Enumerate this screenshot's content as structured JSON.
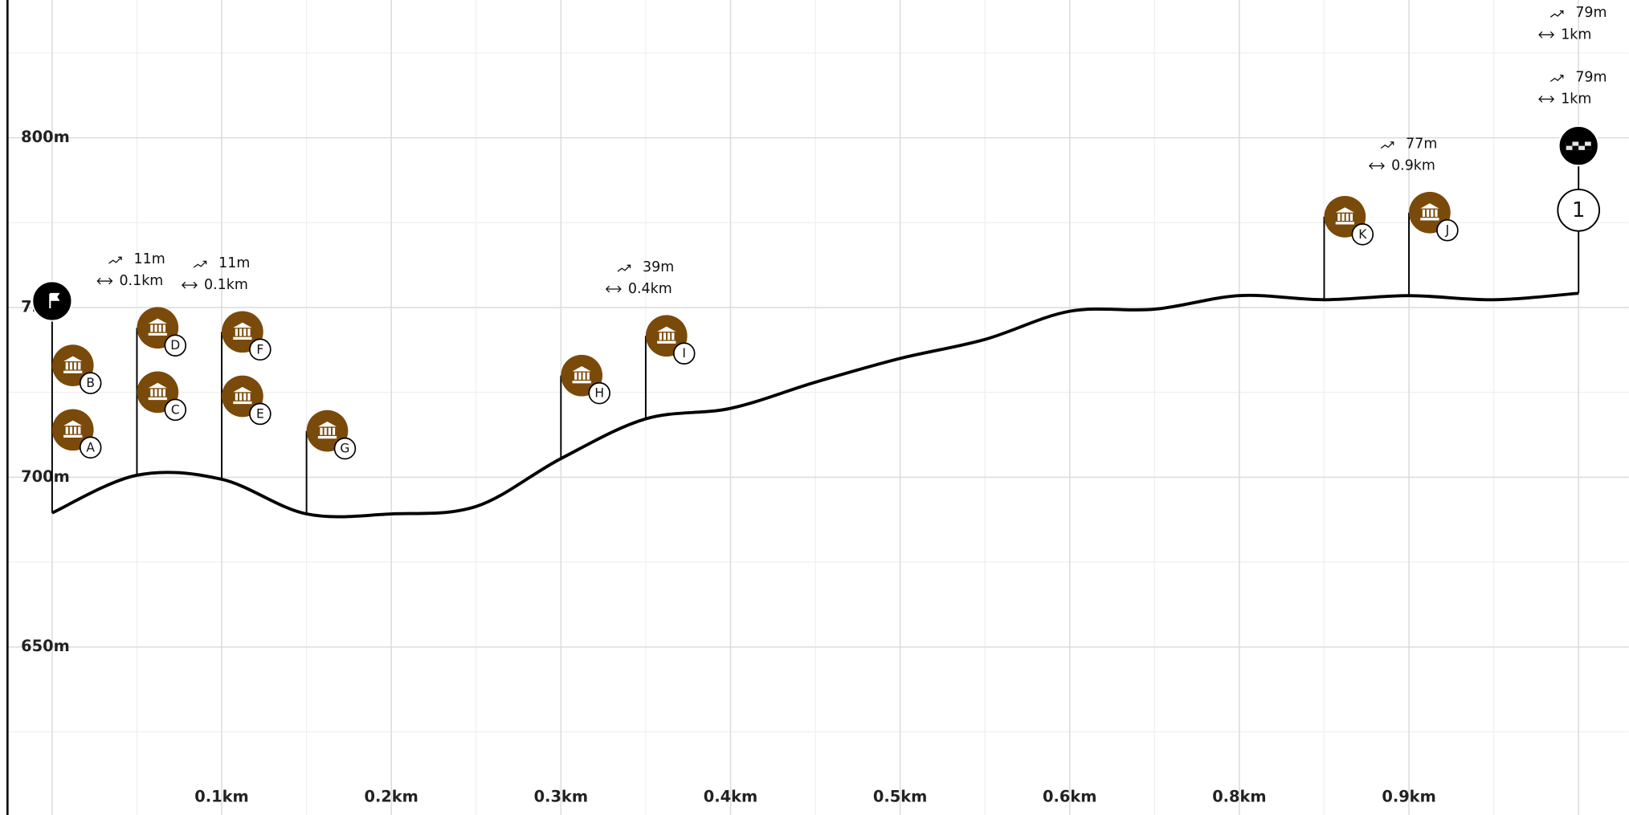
{
  "chart_data": {
    "type": "line",
    "x": [
      0,
      0.05,
      0.1,
      0.15,
      0.2,
      0.25,
      0.3,
      0.35,
      0.4,
      0.45,
      0.5,
      0.55,
      0.6,
      0.65,
      0.7,
      0.75,
      0.8,
      0.85,
      0.9
    ],
    "values": [
      689.5,
      700.6,
      699.4,
      689.2,
      689.2,
      691.4,
      705.5,
      717.2,
      720.3,
      728,
      735,
      740.6,
      748.9,
      749.5,
      753.5,
      752.3,
      753.5,
      752.3,
      754.2
    ],
    "color": "#000000",
    "xlim": [
      -0.0263,
      0.9296
    ],
    "ylim": [
      600.5,
      840.6
    ],
    "xticks": [
      {
        "value": 0.1,
        "label": "0.1km"
      },
      {
        "value": 0.2,
        "label": "0.2km"
      },
      {
        "value": 0.3,
        "label": "0.3km"
      },
      {
        "value": 0.4,
        "label": "0.4km"
      },
      {
        "value": 0.5,
        "label": "0.5km"
      },
      {
        "value": 0.6,
        "label": "0.6km"
      },
      {
        "value": 0.7,
        "label": "0.8km"
      },
      {
        "value": 0.8,
        "label": "0.9km"
      }
    ],
    "yticks": [
      {
        "value": 650,
        "label": "650m"
      },
      {
        "value": 700,
        "label": "700m"
      },
      {
        "value": 750,
        "label": "750m"
      },
      {
        "value": 800,
        "label": "800m"
      }
    ],
    "grid": true,
    "markers": [
      {
        "kind": "poi",
        "label": "A",
        "x": 0
      },
      {
        "kind": "poi",
        "label": "B",
        "x": 0
      },
      {
        "kind": "start",
        "x": 0
      },
      {
        "kind": "poi",
        "label": "C",
        "x": 0.05
      },
      {
        "kind": "poi",
        "label": "D",
        "x": 0.05
      },
      {
        "kind": "poi",
        "label": "E",
        "x": 0.1
      },
      {
        "kind": "poi",
        "label": "F",
        "x": 0.1
      },
      {
        "kind": "poi",
        "label": "G",
        "x": 0.15
      },
      {
        "kind": "poi",
        "label": "H",
        "x": 0.3
      },
      {
        "kind": "poi",
        "label": "I",
        "x": 0.35
      },
      {
        "kind": "poi",
        "label": "K",
        "x": 0.75
      },
      {
        "kind": "poi",
        "label": "J",
        "x": 0.8
      },
      {
        "kind": "waypoint",
        "label": "1",
        "x": 0.9
      },
      {
        "kind": "finish",
        "x": 0.9
      }
    ],
    "stats": [
      {
        "x": 0.05,
        "gain": "11m",
        "distance": "0.1km"
      },
      {
        "x": 0.1,
        "gain": "11m",
        "distance": "0.1km"
      },
      {
        "x": 0.35,
        "gain": "39m",
        "distance": "0.4km"
      },
      {
        "x": 0.8,
        "gain": "77m",
        "distance": "0.9km"
      },
      {
        "x": 0.9,
        "gain": "79m",
        "distance": "1km"
      },
      {
        "x": 0.9,
        "gain": "79m",
        "distance": "1km"
      }
    ]
  }
}
